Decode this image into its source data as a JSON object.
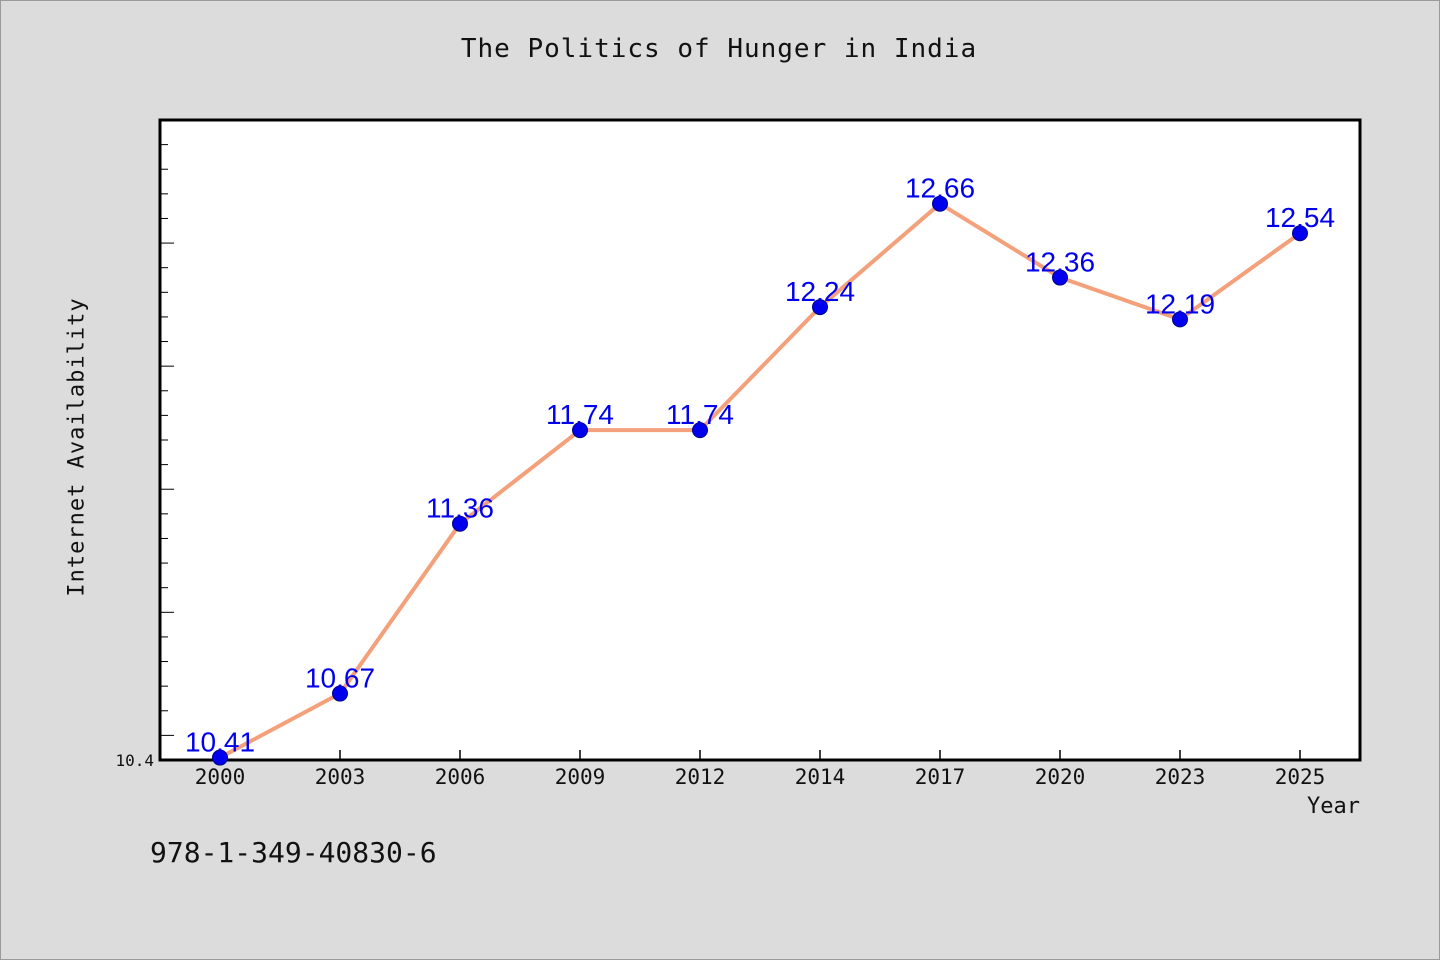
{
  "colors": {
    "background": "#dcdcdc",
    "plot_background": "#ffffff",
    "line": "#f4a07a",
    "marker": "#0000ee",
    "data_label": "#0000ee"
  },
  "footer": {
    "isbn": "978-1-349-40830-6"
  },
  "chart_data": {
    "type": "line",
    "title": "The Politics of Hunger in India",
    "xlabel": "Year",
    "ylabel": "Internet Availability",
    "categories": [
      "2000",
      "2003",
      "2006",
      "2009",
      "2012",
      "2014",
      "2017",
      "2020",
      "2023",
      "2025"
    ],
    "series": [
      {
        "values": [
          10.41,
          10.67,
          11.36,
          11.74,
          11.74,
          12.24,
          12.66,
          12.36,
          12.19,
          12.54
        ]
      }
    ],
    "data_labels": [
      "10.41",
      "10.67",
      "11.36",
      "11.74",
      "11.74",
      "12.24",
      "12.66",
      "12.36",
      "12.19",
      "12.54"
    ],
    "y_tick_labels": [
      "10.4"
    ],
    "ylim": [
      10.4,
      13.0
    ],
    "grid": false,
    "legend": "none"
  }
}
